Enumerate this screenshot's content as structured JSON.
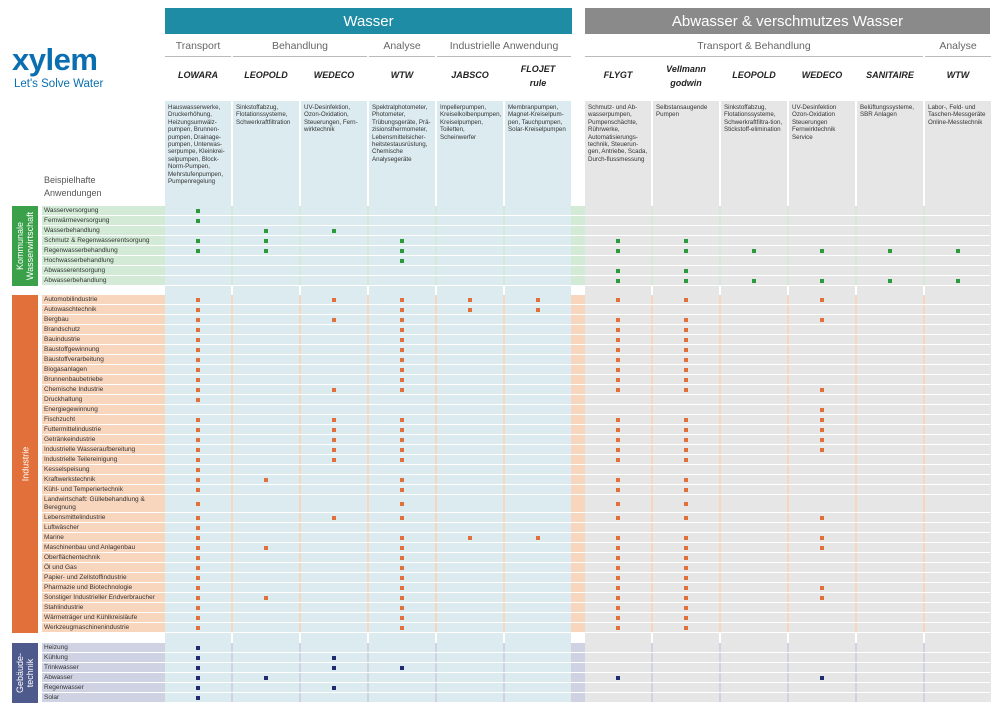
{
  "logo": {
    "word": "xylem",
    "tagline": "Let's Solve Water"
  },
  "headers": {
    "wasser": "Wasser",
    "abwasser": "Abwasser & verschmutzes Wasser"
  },
  "subheaders": [
    "Transport",
    "Behandlung",
    "Analyse",
    "Industrielle Anwendung",
    "Transport & Behandlung",
    "Analyse"
  ],
  "side_label": [
    "Beispielhafte",
    "Anwendungen"
  ],
  "brands": [
    "LOWARA",
    "LEOPOLD",
    "WEDECO",
    "WTW",
    "JABSCO",
    "FLOJET",
    "rule",
    "FLYGT",
    "Vellmann",
    "godwin",
    "LEOPOLD",
    "WEDECO",
    "SANITAIRE",
    "WTW"
  ],
  "column_texts": [
    "Hauswasserwerke, Druckerhöhung, Heizungsumwälz-pumpen, Brunnen-pumpen, Drainage-pumpen, Unterwas-serpumpe, Kleinkrei-selpumpen, Block-Norm-Pumpen, Mehrstufenpumpen, Pumpenregelung",
    "Sinkstoffabzug, Flotationssysteme, Schwerkraftfiltration",
    "UV-Desinfektion, Ozon-Oxidation, Steuerungen, Fern-wirktechnik",
    "Spektralphotometer, Photometer, Trübungsgeräte, Prä-zisionsthermometer, Lebensmittelsicher-heitstestausrüstung, Chemische Analysegeräte",
    "Impellerpumpen, Kreiselkolbenpumpen, Kreiselpumpen, Toiletten, Scheinwerfer",
    "Membranpumpen, Magnet-Kreiselpum-pen, Tauchpumpen, Solar-Kreiselpumpen",
    "Schmutz- und Ab-wasserpumpen, Pumpenschächte, Rührwerke, Automatisierungs-technik, Steuerun-gen, Antriebe, Scada, Durch-flussmessung",
    "Selbstansaugende Pumpen",
    "Sinkstoffabzug, Flotationssysteme, Schwerkraftfiltra-tion, Stickstoff-elimination",
    "UV-Desinfektion Ozon-Oxidation Steuerungen Fernwirktechnik Service",
    "Belüftungssysteme, SBR Anlagen",
    "Labor-, Feld- und Taschen-Messgeräte Online-Messtechnik"
  ],
  "sections": [
    {
      "title": "Kommunale Wasserwirtschaft",
      "color": "#3aa04a",
      "rowcolor": "#d3ebd6",
      "rows": [
        "Wasserversorgung",
        "Fernwärmeversorgung",
        "Wasserbehandlung",
        "Schmutz & Regenwasserentsorgung",
        "Regenwasserbehandlung",
        "Hochwasserbehandlung",
        "Abwasserentsorgung",
        "Abwasserbehandlung"
      ]
    },
    {
      "title": "Industrie",
      "color": "#e2703a",
      "rowcolor": "#f8d5bd",
      "rows": [
        "Automobilindustrie",
        "Autowaschtechnik",
        "Bergbau",
        "Brandschutz",
        "Bauindustrie",
        "Baustoffgewinnung",
        "Baustoffverarbeitung",
        "Biogasanlagen",
        "Brunnenbaubetriebe",
        "Chemische Industrie",
        "Druckhaltung",
        "Energiegewinnung",
        "Fischzucht",
        "Futtermittelindustrie",
        "Getränkeindustrie",
        "Industrielle Wasseraufbereitung",
        "Industrielle Teilereinigung",
        "Kesselspeisung",
        "Kraftwerkstechnik",
        "Kühl- und Temperiertechnik",
        "Landwirtschaft: Güllebehandlung & Beregnung",
        "Lebensmittelindustrie",
        "Luftwäscher",
        "Marine",
        "Maschinenbau und Anlagenbau",
        "Oberflächentechnik",
        "Öl und Gas",
        "Papier- und Zellstoffindustrie",
        "Pharmazie und Biotechnologie",
        "Sonstiger Industrieller Endverbraucher",
        "Stahlindustrie",
        "Wärmeträger und Kühlkreisläufe",
        "Werkzeugmaschinenindustrie"
      ]
    },
    {
      "title": "Gebäude-technik",
      "color": "#4f5a8c",
      "rowcolor": "#cfd2e2",
      "rows": [
        "Heizung",
        "Kühlung",
        "Trinkwasser",
        "Abwasser",
        "Regenwasser",
        "Solar"
      ]
    }
  ],
  "colors": {
    "wasser": "#1d8ca4",
    "abwasser": "#8a8a8a",
    "green_dot": "#2a9a3a",
    "orange_dot": "#e2703a",
    "navy_dot": "#1f2d6e"
  }
}
